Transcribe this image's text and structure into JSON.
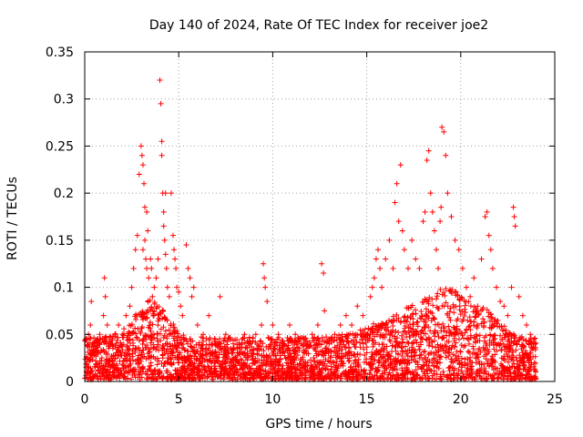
{
  "chart_data": {
    "type": "scatter",
    "title": "Day 140 of 2024, Rate Of TEC Index for receiver joe2",
    "xlabel": "GPS time / hours",
    "ylabel": "ROTI / TECUs",
    "xlim": [
      0,
      25
    ],
    "ylim": [
      0,
      0.35
    ],
    "xticks": [
      0,
      5,
      10,
      15,
      20,
      25
    ],
    "xtick_labels": [
      "0",
      "5",
      "10",
      "15",
      "20",
      "25"
    ],
    "yticks": [
      0,
      0.05,
      0.1,
      0.15,
      0.2,
      0.25,
      0.3,
      0.35
    ],
    "ytick_labels": [
      "0",
      "0.05",
      "0.1",
      "0.15",
      "0.2",
      "0.25",
      "0.3",
      "0.35"
    ],
    "grid": true,
    "marker": "+",
    "series": [
      {
        "name": "ROTI",
        "color": "#ff0000",
        "x": [
          0.1,
          0.2,
          0.3,
          0.35,
          0.5,
          0.7,
          0.8,
          1.0,
          1.05,
          1.1,
          1.2,
          1.4,
          1.6,
          1.8,
          2.0,
          2.2,
          2.4,
          2.5,
          2.6,
          2.7,
          2.8,
          2.9,
          3.0,
          3.05,
          3.1,
          3.1,
          3.15,
          3.2,
          3.2,
          3.25,
          3.3,
          3.3,
          3.35,
          3.4,
          3.5,
          3.55,
          3.6,
          3.7,
          3.8,
          3.9,
          4.0,
          4.05,
          4.1,
          4.1,
          4.15,
          4.2,
          4.2,
          4.25,
          4.3,
          4.3,
          4.35,
          4.4,
          4.5,
          4.6,
          4.7,
          4.75,
          4.8,
          4.85,
          4.9,
          5.0,
          5.1,
          5.2,
          5.4,
          5.5,
          5.6,
          5.7,
          5.8,
          6.0,
          6.3,
          6.6,
          6.9,
          7.2,
          7.5,
          7.9,
          8.2,
          8.5,
          8.8,
          9.1,
          9.4,
          9.5,
          9.55,
          9.6,
          9.7,
          10.0,
          10.3,
          10.6,
          10.9,
          11.2,
          11.5,
          11.8,
          12.1,
          12.4,
          12.6,
          12.7,
          12.75,
          13.0,
          13.3,
          13.6,
          13.9,
          14.2,
          14.5,
          14.8,
          15.0,
          15.2,
          15.3,
          15.4,
          15.5,
          15.6,
          15.7,
          15.8,
          16.0,
          16.2,
          16.4,
          16.5,
          16.6,
          16.7,
          16.8,
          16.9,
          17.0,
          17.2,
          17.4,
          17.6,
          17.8,
          18.0,
          18.1,
          18.2,
          18.3,
          18.4,
          18.5,
          18.6,
          18.7,
          18.8,
          18.9,
          18.95,
          19.0,
          19.1,
          19.2,
          19.3,
          19.5,
          19.7,
          19.9,
          20.1,
          20.3,
          20.5,
          20.7,
          20.9,
          21.1,
          21.3,
          21.4,
          21.5,
          21.6,
          21.7,
          21.9,
          22.1,
          22.3,
          22.5,
          22.7,
          22.8,
          22.85,
          22.9,
          23.1,
          23.3,
          23.5,
          23.7,
          23.9
        ],
        "y": [
          0.045,
          0.05,
          0.06,
          0.085,
          0.04,
          0.03,
          0.05,
          0.07,
          0.11,
          0.09,
          0.06,
          0.04,
          0.05,
          0.06,
          0.05,
          0.07,
          0.08,
          0.1,
          0.12,
          0.14,
          0.155,
          0.22,
          0.25,
          0.24,
          0.23,
          0.14,
          0.21,
          0.185,
          0.15,
          0.13,
          0.12,
          0.18,
          0.16,
          0.11,
          0.13,
          0.12,
          0.09,
          0.1,
          0.11,
          0.13,
          0.32,
          0.295,
          0.255,
          0.24,
          0.2,
          0.18,
          0.165,
          0.15,
          0.2,
          0.135,
          0.12,
          0.1,
          0.09,
          0.2,
          0.155,
          0.14,
          0.13,
          0.12,
          0.1,
          0.095,
          0.08,
          0.07,
          0.145,
          0.12,
          0.11,
          0.09,
          0.1,
          0.06,
          0.05,
          0.07,
          0.04,
          0.09,
          0.05,
          0.04,
          0.03,
          0.05,
          0.04,
          0.05,
          0.06,
          0.125,
          0.11,
          0.1,
          0.085,
          0.06,
          0.05,
          0.04,
          0.06,
          0.05,
          0.04,
          0.03,
          0.05,
          0.06,
          0.125,
          0.115,
          0.075,
          0.04,
          0.05,
          0.06,
          0.07,
          0.06,
          0.08,
          0.07,
          0.05,
          0.09,
          0.1,
          0.11,
          0.13,
          0.14,
          0.12,
          0.1,
          0.13,
          0.15,
          0.12,
          0.19,
          0.21,
          0.17,
          0.23,
          0.16,
          0.14,
          0.12,
          0.15,
          0.13,
          0.12,
          0.17,
          0.18,
          0.235,
          0.245,
          0.2,
          0.18,
          0.16,
          0.14,
          0.12,
          0.17,
          0.185,
          0.27,
          0.265,
          0.24,
          0.2,
          0.175,
          0.15,
          0.14,
          0.12,
          0.1,
          0.09,
          0.11,
          0.08,
          0.13,
          0.175,
          0.18,
          0.155,
          0.14,
          0.12,
          0.1,
          0.085,
          0.08,
          0.07,
          0.1,
          0.185,
          0.175,
          0.165,
          0.09,
          0.07,
          0.06,
          0.05,
          0.045
        ]
      }
    ],
    "background_density": {
      "x_range": [
        0,
        24
      ],
      "y_range": [
        0,
        0.06
      ],
      "description": "Dense cloud of red + markers along the whole day between 0 and about 0.06 TECUs"
    }
  }
}
